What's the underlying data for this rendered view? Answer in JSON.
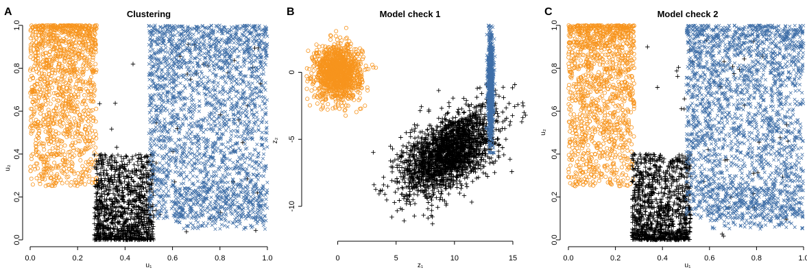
{
  "colors": {
    "orange": "#f7941d",
    "blue": "#3f6fa8",
    "black": "#000000"
  },
  "chart_data": [
    {
      "type": "scatter",
      "letter": "A",
      "title": "Clustering",
      "xlabel": "u₁",
      "ylabel": "u₂",
      "xlim": [
        0,
        1
      ],
      "ylim": [
        0,
        1
      ],
      "xticks": [
        "0.0",
        "0.2",
        "0.4",
        "0.6",
        "0.8",
        "1.0"
      ],
      "yticks": [
        "0.0",
        "0.2",
        "0.4",
        "0.6",
        "0.8",
        "1.0"
      ],
      "xtick_values": [
        0,
        0.2,
        0.4,
        0.6,
        0.8,
        1.0
      ],
      "ytick_values": [
        0,
        0.2,
        0.4,
        0.6,
        0.8,
        1.0
      ],
      "series": [
        {
          "marker": "circle",
          "color": "#f7941d",
          "x_range": [
            0.0,
            0.28
          ],
          "y_range": [
            0.25,
            1.0
          ]
        },
        {
          "marker": "plus",
          "color": "#000000",
          "x_range": [
            0.27,
            0.52
          ],
          "y_range": [
            0.0,
            0.4
          ]
        },
        {
          "marker": "cross",
          "color": "#3f6fa8",
          "x_range": [
            0.5,
            1.0
          ],
          "y_range": [
            0.1,
            1.0
          ]
        }
      ]
    },
    {
      "type": "scatter",
      "letter": "B",
      "title": "Model check 1",
      "xlabel": "z₁",
      "ylabel": "z₂",
      "xlim": [
        -2.5,
        16
      ],
      "ylim": [
        -12.5,
        3.5
      ],
      "xticks": [
        "0",
        "5",
        "10",
        "15"
      ],
      "yticks": [
        "0",
        "-5",
        "-10"
      ],
      "xtick_values": [
        0,
        5,
        10,
        15
      ],
      "ytick_values": [
        0,
        -5,
        -10
      ],
      "series": [
        {
          "marker": "circle",
          "color": "#f7941d",
          "center": [
            0,
            0
          ],
          "sd": [
            1.0,
            1.0
          ]
        },
        {
          "marker": "plus",
          "color": "#000000",
          "center": [
            9.5,
            -6
          ],
          "sd": [
            2.0,
            1.6
          ]
        },
        {
          "marker": "cross",
          "color": "#3f6fa8",
          "center": [
            13.1,
            -1
          ],
          "sd": [
            0.12,
            2.0
          ]
        }
      ]
    },
    {
      "type": "scatter",
      "letter": "C",
      "title": "Model check 2",
      "xlabel": "u₁",
      "ylabel": "u₂",
      "xlim": [
        0,
        1
      ],
      "ylim": [
        0,
        1
      ],
      "xticks": [
        "0.0",
        "0.2",
        "0.4",
        "0.6",
        "0.8",
        "1.0"
      ],
      "yticks": [
        "0.0",
        "0.2",
        "0.4",
        "0.6",
        "0.8",
        "1.0"
      ],
      "xtick_values": [
        0,
        0.2,
        0.4,
        0.6,
        0.8,
        1.0
      ],
      "ytick_values": [
        0,
        0.2,
        0.4,
        0.6,
        0.8,
        1.0
      ],
      "series": [
        {
          "marker": "circle",
          "color": "#f7941d",
          "x_range": [
            0.0,
            0.28
          ],
          "y_range": [
            0.25,
            1.0
          ]
        },
        {
          "marker": "plus",
          "color": "#000000",
          "x_range": [
            0.27,
            0.52
          ],
          "y_range": [
            0.0,
            0.4
          ]
        },
        {
          "marker": "cross",
          "color": "#3f6fa8",
          "x_range": [
            0.5,
            1.0
          ],
          "y_range": [
            0.1,
            1.0
          ]
        }
      ]
    }
  ]
}
